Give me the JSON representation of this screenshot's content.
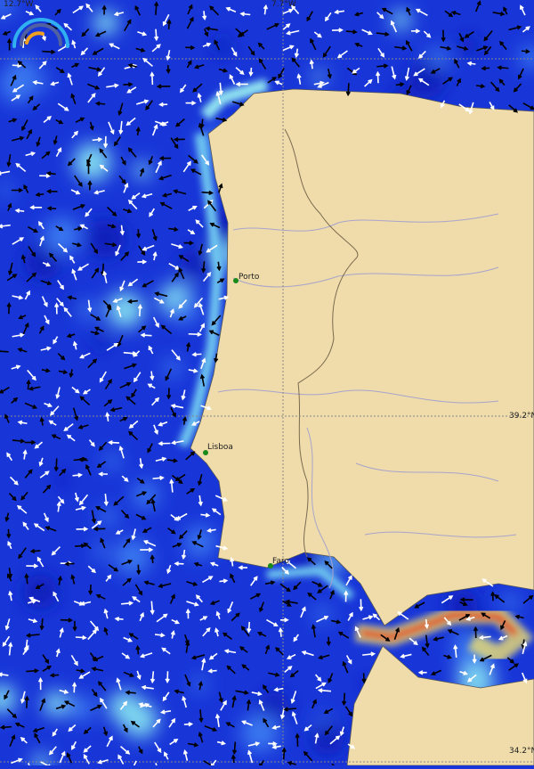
{
  "map": {
    "grid_labels": {
      "lon_left": "12.7°W",
      "lon_mid": "7.7°W",
      "lat_mid": "39.2°N",
      "lat_bottom": "34.2°N"
    },
    "cities": [
      {
        "name": "Porto"
      },
      {
        "name": "Lisboa"
      },
      {
        "name": "Faro"
      }
    ],
    "legend_icon": "current-speed-gauge-icon",
    "colors": {
      "ocean": "#1836d8",
      "ocean_light": "#7fd8f0",
      "land": "#efdcaa",
      "river": "#a8a4cc",
      "border": "#7a6a50",
      "hot": "#e03020",
      "arrow_white": "#ffffff",
      "arrow_black": "#000000"
    }
  }
}
